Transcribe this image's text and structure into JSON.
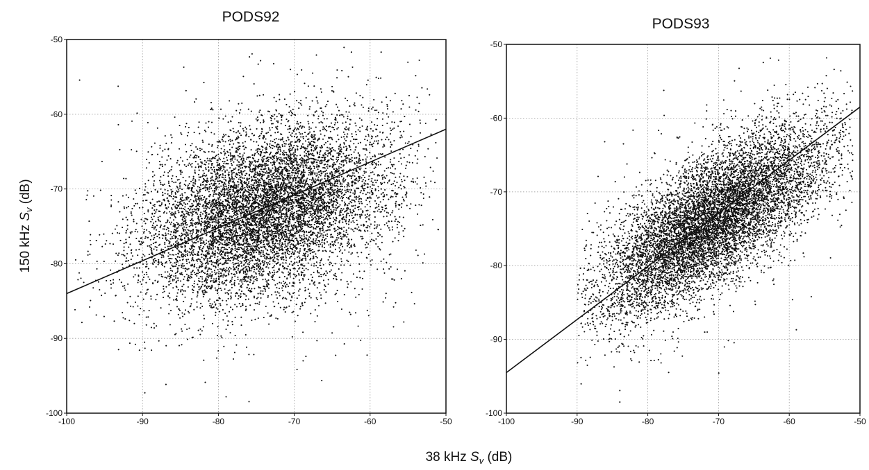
{
  "figure": {
    "shared_ylabel": {
      "prefix": "150 kHz ",
      "var": "S",
      "sub": "v",
      "suffix": " (dB)"
    },
    "shared_xlabel": {
      "prefix": "38 kHz ",
      "var": "S",
      "sub": "v",
      "suffix": " (dB)"
    }
  },
  "chart_data": [
    {
      "type": "scatter",
      "title": "PODS92",
      "xlim": [
        -100,
        -50
      ],
      "ylim": [
        -100,
        -50
      ],
      "xticks": [
        -100,
        -90,
        -80,
        -70,
        -60,
        -50
      ],
      "yticks": [
        -100,
        -90,
        -80,
        -70,
        -60,
        -50
      ],
      "grid": true,
      "point_color": "#111111",
      "cloud": {
        "approx_points": 9000,
        "center": [
          -74,
          -73
        ],
        "spread_along_trend": 8.5,
        "spread_across_trend": 5.2,
        "x_range": [
          -99,
          -51
        ],
        "y_range": [
          -99,
          -51
        ]
      },
      "regression_line": [
        [
          -100,
          -84
        ],
        [
          -50,
          -62
        ]
      ]
    },
    {
      "type": "scatter",
      "title": "PODS93",
      "xlim": [
        -100,
        -50
      ],
      "ylim": [
        -100,
        -50
      ],
      "xticks": [
        -100,
        -90,
        -80,
        -70,
        -60,
        -50
      ],
      "yticks": [
        -100,
        -90,
        -80,
        -70,
        -60,
        -50
      ],
      "grid": true,
      "point_color": "#111111",
      "cloud": {
        "approx_points": 9000,
        "center": [
          -71,
          -74
        ],
        "spread_along_trend": 9.5,
        "spread_across_trend": 3.6,
        "x_range": [
          -90,
          -51
        ],
        "y_range": [
          -99,
          -51
        ]
      },
      "regression_line": [
        [
          -100,
          -94.5
        ],
        [
          -50,
          -58.5
        ]
      ]
    }
  ]
}
